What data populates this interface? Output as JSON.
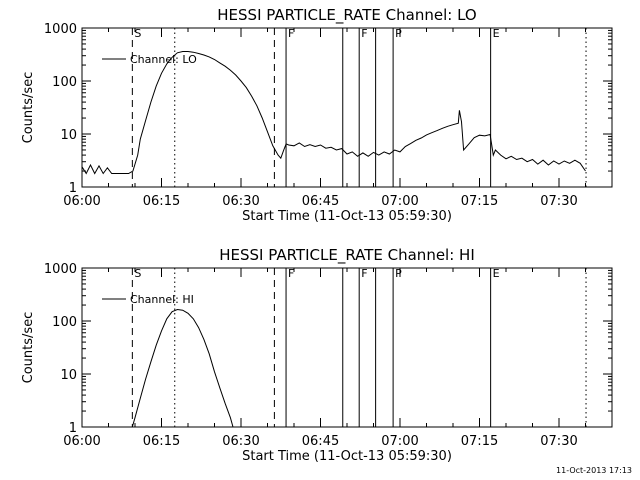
{
  "chart_data": [
    {
      "type": "line",
      "title": "HESSI PARTICLE_RATE Channel: LO",
      "xlabel": "Start Time (11-Oct-13 05:59:30)",
      "ylabel": "Counts/sec",
      "yscale": "log",
      "ylim": [
        1,
        1000
      ],
      "xlim": [
        0,
        100
      ],
      "x_unit": "minutes after 06:00",
      "xticks": [
        {
          "x": 0,
          "label": "06:00"
        },
        {
          "x": 15,
          "label": "06:15"
        },
        {
          "x": 30,
          "label": "06:30"
        },
        {
          "x": 45,
          "label": "06:45"
        },
        {
          "x": 60,
          "label": "07:00"
        },
        {
          "x": 75,
          "label": "07:15"
        },
        {
          "x": 90,
          "label": "07:30"
        }
      ],
      "yticks": [
        {
          "y": 1,
          "label": "1"
        },
        {
          "y": 10,
          "label": "10"
        },
        {
          "y": 100,
          "label": "100"
        },
        {
          "y": 1000,
          "label": "1000"
        }
      ],
      "legend": {
        "placement": "top-left",
        "entries": [
          "Channel: LO"
        ]
      },
      "markers": [
        {
          "x": 9.5,
          "label": "S",
          "style": "dashed"
        },
        {
          "x": 17.5,
          "label": "",
          "style": "dotted"
        },
        {
          "x": 36.3,
          "label": "",
          "style": "dashed"
        },
        {
          "x": 38.5,
          "label": "F",
          "style": "solid"
        },
        {
          "x": 49.2,
          "label": "",
          "style": "solid"
        },
        {
          "x": 52.3,
          "label": "F",
          "style": "solid"
        },
        {
          "x": 55.4,
          "label": "",
          "style": "solid"
        },
        {
          "x": 58.7,
          "label": "P",
          "style": "solid"
        },
        {
          "x": 77.1,
          "label": "E",
          "style": "solid"
        },
        {
          "x": 95.1,
          "label": "",
          "style": "dotted"
        }
      ],
      "series": [
        {
          "x": [
            0,
            0.8,
            1.6,
            2.4,
            3.2,
            4,
            4.8,
            5.6,
            6.4,
            7.2,
            8,
            8.8,
            9.6,
            10,
            10.5,
            11,
            12,
            13,
            14,
            15,
            16,
            17,
            18,
            19,
            20,
            21,
            22,
            23,
            24,
            25,
            26,
            27,
            28,
            29,
            30,
            31,
            32,
            33,
            34,
            35,
            36,
            37,
            37.5,
            38,
            38.5,
            39,
            40,
            41,
            42,
            43,
            44,
            45,
            46,
            47,
            48,
            49,
            50,
            51,
            52,
            53,
            54,
            55,
            56,
            57,
            58,
            59,
            60,
            61,
            62,
            63,
            64,
            65,
            66,
            67,
            68,
            69,
            70,
            71,
            71.2,
            71.6,
            72,
            73,
            74,
            75,
            76,
            77,
            77.6,
            78,
            79,
            80,
            81,
            82,
            83,
            84,
            85,
            86,
            87,
            88,
            89,
            90,
            91,
            92,
            93,
            94,
            95
          ],
          "values": [
            2.4,
            1.8,
            2.6,
            1.8,
            2.5,
            1.8,
            2.3,
            1.8,
            1.8,
            1.8,
            1.8,
            1.8,
            2,
            2.7,
            4,
            8,
            18,
            40,
            80,
            140,
            210,
            280,
            340,
            360,
            360,
            350,
            330,
            310,
            285,
            255,
            220,
            190,
            160,
            130,
            100,
            75,
            52,
            34,
            20,
            11,
            6,
            4,
            3.5,
            4.8,
            6.5,
            6.2,
            6,
            6.8,
            5.8,
            6.3,
            5.8,
            6.2,
            5.4,
            5.6,
            5,
            5.3,
            4.2,
            4.6,
            3.8,
            4.4,
            3.8,
            4.5,
            4,
            4.6,
            4.2,
            5,
            4.6,
            5.8,
            6.6,
            7.6,
            8.4,
            9.6,
            10.6,
            11.6,
            12.8,
            14,
            15,
            16,
            28,
            17,
            5,
            6.5,
            8.5,
            9.5,
            9.2,
            9.8,
            4,
            5,
            4,
            3.4,
            3.8,
            3.3,
            3.5,
            3,
            3.3,
            2.7,
            3.2,
            2.6,
            3.1,
            2.7,
            3.1,
            2.8,
            3.2,
            2.8,
            2
          ]
        }
      ]
    },
    {
      "type": "line",
      "title": "HESSI PARTICLE_RATE Channel: HI",
      "xlabel": "Start Time (11-Oct-13 05:59:30)",
      "ylabel": "Counts/sec",
      "yscale": "log",
      "ylim": [
        1,
        1000
      ],
      "xlim": [
        0,
        100
      ],
      "x_unit": "minutes after 06:00",
      "xticks": [
        {
          "x": 0,
          "label": "06:00"
        },
        {
          "x": 15,
          "label": "06:15"
        },
        {
          "x": 30,
          "label": "06:30"
        },
        {
          "x": 45,
          "label": "06:45"
        },
        {
          "x": 60,
          "label": "07:00"
        },
        {
          "x": 75,
          "label": "07:15"
        },
        {
          "x": 90,
          "label": "07:30"
        }
      ],
      "yticks": [
        {
          "y": 1,
          "label": "1"
        },
        {
          "y": 10,
          "label": "10"
        },
        {
          "y": 100,
          "label": "100"
        },
        {
          "y": 1000,
          "label": "1000"
        }
      ],
      "legend": {
        "placement": "top-left",
        "entries": [
          "Channel: HI"
        ]
      },
      "markers": [
        {
          "x": 9.5,
          "label": "S",
          "style": "dashed"
        },
        {
          "x": 17.5,
          "label": "",
          "style": "dotted"
        },
        {
          "x": 36.3,
          "label": "",
          "style": "dashed"
        },
        {
          "x": 38.5,
          "label": "F",
          "style": "solid"
        },
        {
          "x": 49.2,
          "label": "",
          "style": "solid"
        },
        {
          "x": 52.3,
          "label": "F",
          "style": "solid"
        },
        {
          "x": 55.4,
          "label": "",
          "style": "solid"
        },
        {
          "x": 58.7,
          "label": "P",
          "style": "solid"
        },
        {
          "x": 77.1,
          "label": "E",
          "style": "solid"
        },
        {
          "x": 95.1,
          "label": "",
          "style": "dotted"
        }
      ],
      "series": [
        {
          "x": [
            9.5,
            10,
            11,
            12,
            13,
            14,
            15,
            16,
            17,
            18,
            19,
            20,
            21,
            22,
            23,
            24,
            25,
            26,
            27,
            28,
            28.5
          ],
          "values": [
            1,
            1.5,
            3.5,
            8,
            17,
            35,
            65,
            110,
            150,
            165,
            160,
            140,
            110,
            75,
            45,
            24,
            11,
            5.5,
            2.8,
            1.5,
            1
          ]
        }
      ]
    }
  ],
  "timestamp": "11-Oct-2013 17:13"
}
